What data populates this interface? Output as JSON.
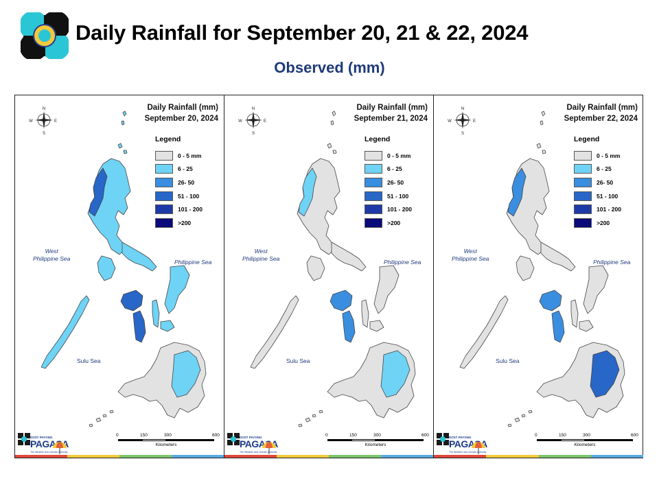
{
  "header": {
    "title": "Daily Rainfall for September 20, 21 & 22, 2024",
    "subtitle": "Observed (mm)"
  },
  "legend": {
    "title": "Legend",
    "classes": [
      {
        "label": "0 - 5 mm",
        "color": "#e2e2e2"
      },
      {
        "label": "6 - 25",
        "color": "#6fd3f5"
      },
      {
        "label": "26- 50",
        "color": "#3a8ee0"
      },
      {
        "label": "51 - 100",
        "color": "#2866c8"
      },
      {
        "label": "101 - 200",
        "color": "#1e3aa8"
      },
      {
        "label": ">200",
        "color": "#0a0a7a"
      }
    ]
  },
  "seas": {
    "west": "West\nPhilippine Sea",
    "east": "Philippine Sea",
    "sulu": "Sulu Sea"
  },
  "compass": {
    "n": "N",
    "s": "S",
    "e": "E",
    "w": "W"
  },
  "scale_bar": {
    "ticks": [
      "0",
      "150",
      "300",
      "600"
    ],
    "unit": "Kilometers"
  },
  "branding": {
    "top": "DOST PAYONG",
    "name": "PAGASA",
    "tagline": "The Weather and Climate Authority",
    "strip_colors": [
      "#e0463a",
      "#f1c93c",
      "#7cc56b",
      "#5aa9e0"
    ]
  },
  "panels": [
    {
      "title_line1": "Daily Rainfall (mm)",
      "title_line2": "September 20, 2024",
      "luzon": "#6fd3f5",
      "luzon_west": "#2866c8",
      "visayas": "#6fd3f5",
      "visayas_west": "#2866c8",
      "palawan": "#6fd3f5",
      "mindanao": "#e2e2e2",
      "mindanao_accent": "#6fd3f5"
    },
    {
      "title_line1": "Daily Rainfall (mm)",
      "title_line2": "September 21, 2024",
      "luzon": "#e2e2e2",
      "luzon_west": "#6fd3f5",
      "visayas": "#e2e2e2",
      "visayas_west": "#3a8ee0",
      "palawan": "#e2e2e2",
      "mindanao": "#e2e2e2",
      "mindanao_accent": "#6fd3f5"
    },
    {
      "title_line1": "Daily Rainfall (mm)",
      "title_line2": "September 22, 2024",
      "luzon": "#e2e2e2",
      "luzon_west": "#3a8ee0",
      "visayas": "#e2e2e2",
      "visayas_west": "#3a8ee0",
      "palawan": "#e2e2e2",
      "mindanao": "#e2e2e2",
      "mindanao_accent": "#2866c8"
    }
  ]
}
